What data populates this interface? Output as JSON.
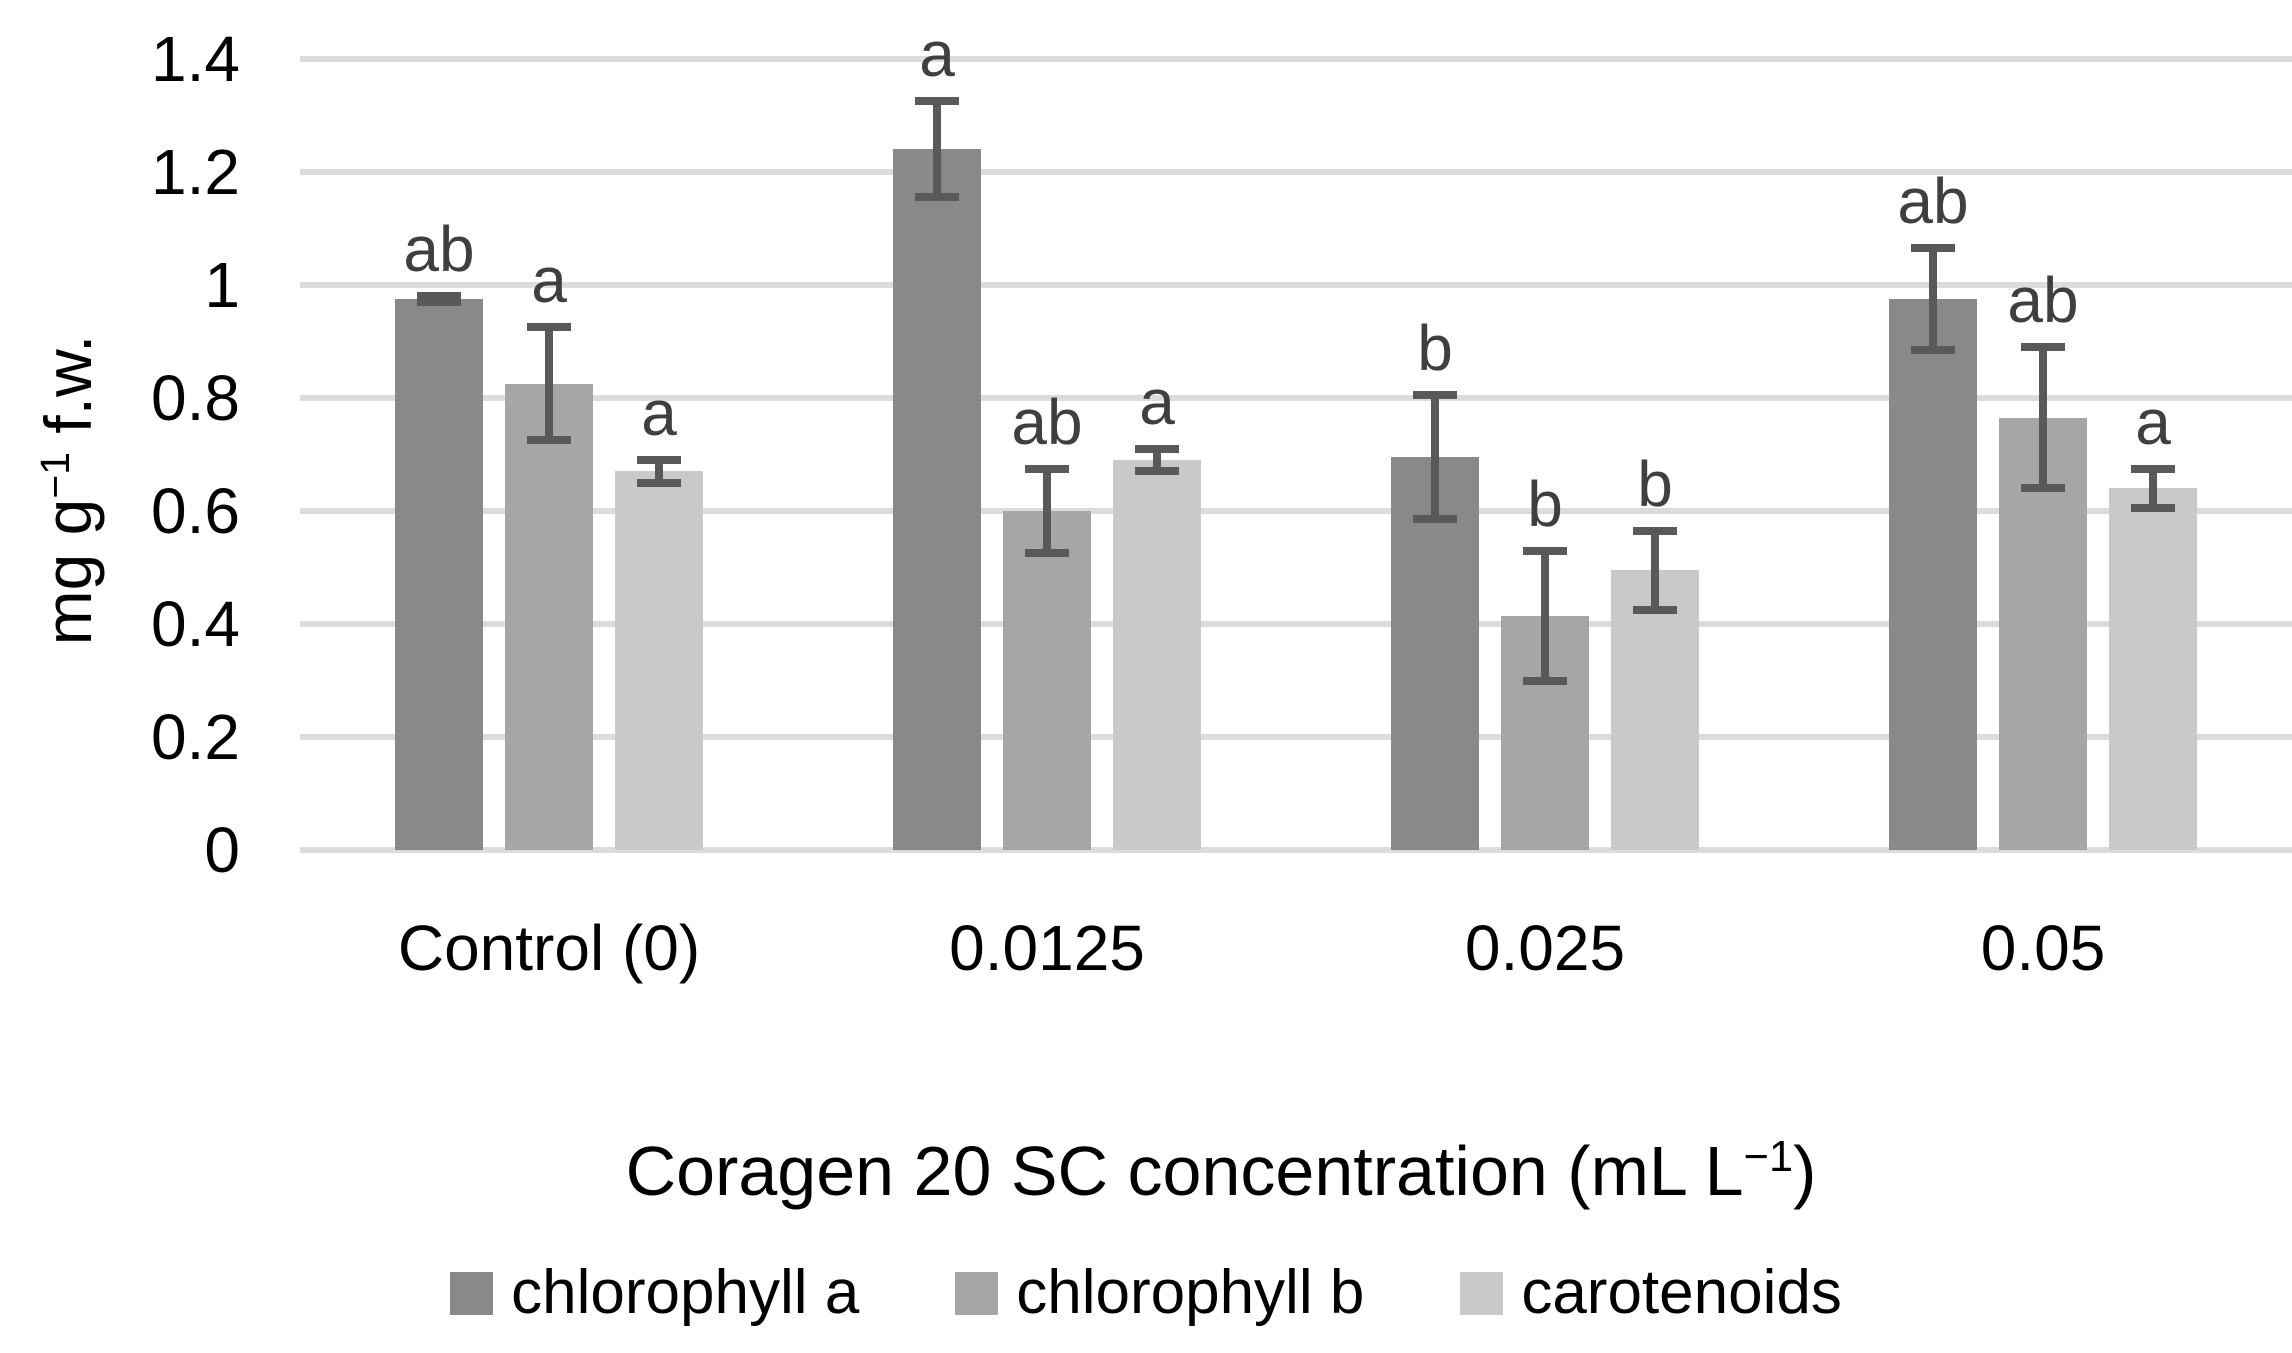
{
  "figure": {
    "background": "#ffffff"
  },
  "y_axis": {
    "label_pre": "mg g",
    "label_sup": "−1",
    "label_post": " f.w.",
    "ticks": [
      {
        "label": "1.4",
        "value": 1.4
      },
      {
        "label": "1.2",
        "value": 1.2
      },
      {
        "label": "1",
        "value": 1.0
      },
      {
        "label": "0.8",
        "value": 0.8
      },
      {
        "label": "0.6",
        "value": 0.6
      },
      {
        "label": "0.4",
        "value": 0.4
      },
      {
        "label": "0.2",
        "value": 0.2
      },
      {
        "label": "0",
        "value": 0.0
      }
    ]
  },
  "x_axis": {
    "title_pre": "Coragen 20 SC concentration (mL L",
    "title_sup": "−1",
    "title_post": ")"
  },
  "chart_data": {
    "type": "bar",
    "title": "",
    "xlabel": "Coragen 20 SC concentration (mL L−1)",
    "ylabel": "mg g−1 f.w.",
    "categories": [
      "Control (0)",
      "0.0125",
      "0.025",
      "0.05"
    ],
    "ylim": [
      0,
      1.4
    ],
    "ytick_step": 0.2,
    "grid": true,
    "legend_position": "bottom",
    "gridline_color": "#dcdcdc",
    "error_bar_color": "#595959",
    "letter_color": "#3f3f3f",
    "series": [
      {
        "name": "chlorophyll a",
        "color": "#898989",
        "values": [
          0.975,
          1.24,
          0.695,
          0.975
        ],
        "errors": [
          0.005,
          0.085,
          0.11,
          0.09
        ],
        "letters": [
          "ab",
          "a",
          "b",
          "ab"
        ]
      },
      {
        "name": "chlorophyll b",
        "color": "#a6a6a6",
        "values": [
          0.825,
          0.6,
          0.415,
          0.765
        ],
        "errors": [
          0.1,
          0.075,
          0.115,
          0.125
        ],
        "letters": [
          "a",
          "ab",
          "b",
          "ab"
        ]
      },
      {
        "name": "carotenoids",
        "color": "#c9c9c9",
        "values": [
          0.67,
          0.69,
          0.495,
          0.64
        ],
        "errors": [
          0.02,
          0.02,
          0.07,
          0.035
        ],
        "letters": [
          "a",
          "a",
          "b",
          "a"
        ]
      }
    ]
  }
}
